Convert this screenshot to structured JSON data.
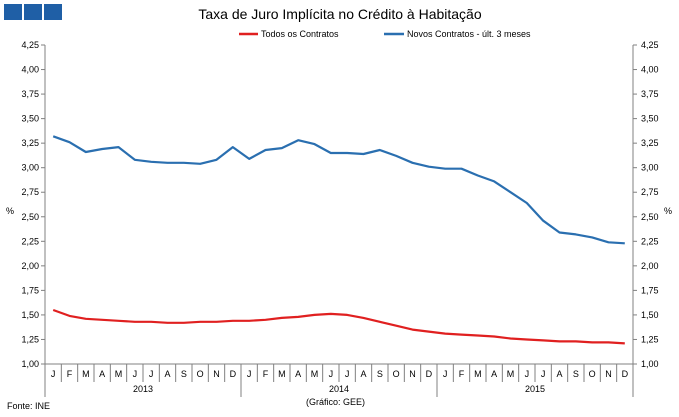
{
  "brand": {
    "logo_color": "#1f5fa6"
  },
  "footer": {
    "source": "Fonte: INE",
    "credit": "(Gráfico: GEE)"
  },
  "chart_data": {
    "type": "line",
    "title": "Taxa de Juro Implícita no Crédito à Habitação",
    "ylabel_left": "%",
    "ylabel_right": "%",
    "ylim": [
      1.0,
      4.25
    ],
    "yticks": [
      "1,00",
      "1,25",
      "1,50",
      "1,75",
      "2,00",
      "2,25",
      "2,50",
      "2,75",
      "3,00",
      "3,25",
      "3,50",
      "3,75",
      "4,00",
      "4,25"
    ],
    "categories": [
      "J",
      "F",
      "M",
      "A",
      "M",
      "J",
      "J",
      "A",
      "S",
      "O",
      "N",
      "D",
      "J",
      "F",
      "M",
      "A",
      "M",
      "J",
      "J",
      "A",
      "S",
      "O",
      "N",
      "D",
      "J",
      "F",
      "M",
      "A",
      "M",
      "J",
      "J",
      "A",
      "S",
      "O",
      "N",
      "D"
    ],
    "years": [
      "2013",
      "2014",
      "2015"
    ],
    "grid": false,
    "legend_position": "top",
    "series": [
      {
        "name": "Todos os Contratos",
        "color": "#e02020",
        "values": [
          1.55,
          1.49,
          1.46,
          1.45,
          1.44,
          1.43,
          1.43,
          1.42,
          1.42,
          1.43,
          1.43,
          1.44,
          1.44,
          1.45,
          1.47,
          1.48,
          1.5,
          1.51,
          1.5,
          1.47,
          1.43,
          1.39,
          1.35,
          1.33,
          1.31,
          1.3,
          1.29,
          1.28,
          1.26,
          1.25,
          1.24,
          1.23,
          1.23,
          1.22,
          1.22,
          1.21
        ]
      },
      {
        "name": "Novos Contratos - últ. 3 meses",
        "color": "#2a6fb0",
        "values": [
          3.32,
          3.26,
          3.16,
          3.19,
          3.21,
          3.08,
          3.06,
          3.05,
          3.05,
          3.04,
          3.08,
          3.21,
          3.09,
          3.18,
          3.2,
          3.28,
          3.24,
          3.15,
          3.15,
          3.14,
          3.18,
          3.12,
          3.05,
          3.01,
          2.99,
          2.99,
          2.92,
          2.86,
          2.75,
          2.64,
          2.46,
          2.34,
          2.32,
          2.29,
          2.24,
          2.23
        ]
      }
    ]
  }
}
